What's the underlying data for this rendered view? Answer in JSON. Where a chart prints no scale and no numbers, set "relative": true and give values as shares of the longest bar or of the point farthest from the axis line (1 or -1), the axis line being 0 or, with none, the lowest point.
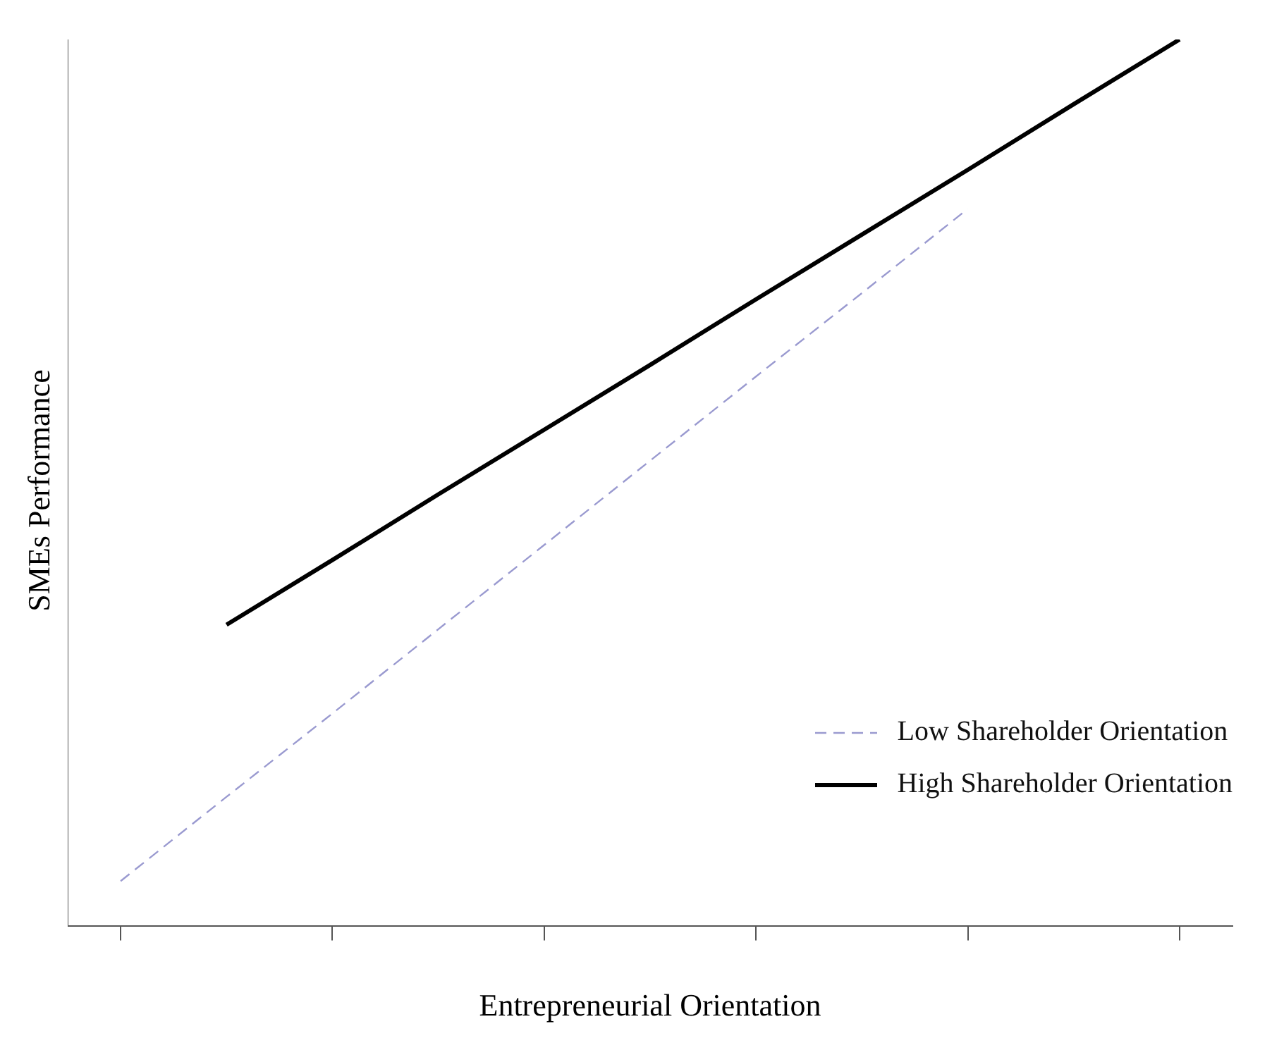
{
  "chart_data": {
    "type": "line",
    "relative": true,
    "xlabel": "Entrepreneurial Orientation",
    "ylabel": "SMEs Performance",
    "categories": [
      null,
      null,
      null,
      null,
      null,
      null,
      null,
      null,
      null,
      null,
      null
    ],
    "series": [
      {
        "name": "Low Shareholder Orientation",
        "color": "#9a9ad0",
        "line_style": "dashed",
        "values": [
          0.051,
          0.146,
          0.24,
          0.335,
          0.43,
          0.525,
          0.62,
          0.714,
          0.809,
          null,
          null
        ]
      },
      {
        "name": "High Shareholder Orientation",
        "color": "#000000",
        "line_style": "solid",
        "values": [
          null,
          0.34,
          0.413,
          0.487,
          0.56,
          0.633,
          0.707,
          0.78,
          0.853,
          0.927,
          1.0
        ]
      }
    ],
    "legend": "bottom right",
    "grid": false,
    "marker": "none"
  }
}
